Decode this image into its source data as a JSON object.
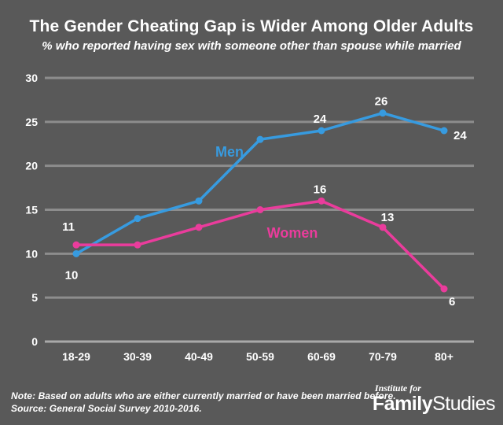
{
  "header": {
    "title": "The Gender Cheating Gap is Wider Among Older Adults",
    "subtitle": "% who reported having sex with someone other than spouse while married"
  },
  "chart_data": {
    "type": "line",
    "categories": [
      "18-29",
      "30-39",
      "40-49",
      "50-59",
      "60-69",
      "70-79",
      "80+"
    ],
    "series": [
      {
        "id": "men",
        "name": "Men",
        "color": "#379BE0",
        "values": [
          10,
          14,
          16,
          23,
          24,
          26,
          24
        ],
        "point_labels": [
          {
            "i": 0,
            "text": "10",
            "placement": "below"
          },
          {
            "i": 4,
            "text": "24",
            "placement": "above"
          },
          {
            "i": 5,
            "text": "26",
            "placement": "above"
          },
          {
            "i": 6,
            "text": "24",
            "placement": "right"
          }
        ]
      },
      {
        "id": "women",
        "name": "Women",
        "color": "#EA3C9C",
        "values": [
          11,
          11,
          13,
          15,
          16,
          13,
          6
        ],
        "point_labels": [
          {
            "i": 0,
            "text": "11",
            "placement": "above-left"
          },
          {
            "i": 4,
            "text": "16",
            "placement": "above"
          },
          {
            "i": 5,
            "text": "13",
            "placement": "above-right"
          },
          {
            "i": 6,
            "text": "6",
            "placement": "below-right"
          }
        ]
      }
    ],
    "title": "The Gender Cheating Gap is Wider Among Older Adults",
    "subtitle": "% who reported having sex with someone other than spouse while married",
    "xlabel": "",
    "ylabel": "",
    "ylim": [
      0,
      30
    ],
    "ytick_step": 5,
    "grid": true,
    "legend_position": "inline-series-labels"
  },
  "footer": {
    "note": "Note: Based on adults who are either currently married or have been married before.",
    "source": "Source: General Social Survey 2010-2016."
  },
  "logo": {
    "line1": "Institute for",
    "word1": "Family",
    "word2": "Studies"
  },
  "colors": {
    "background": "#595959",
    "gridline": "#8D8D8D",
    "axis_line": "#A9A9A9",
    "text": "#FFFFFF",
    "men": "#379BE0",
    "women": "#EA3C9C"
  }
}
